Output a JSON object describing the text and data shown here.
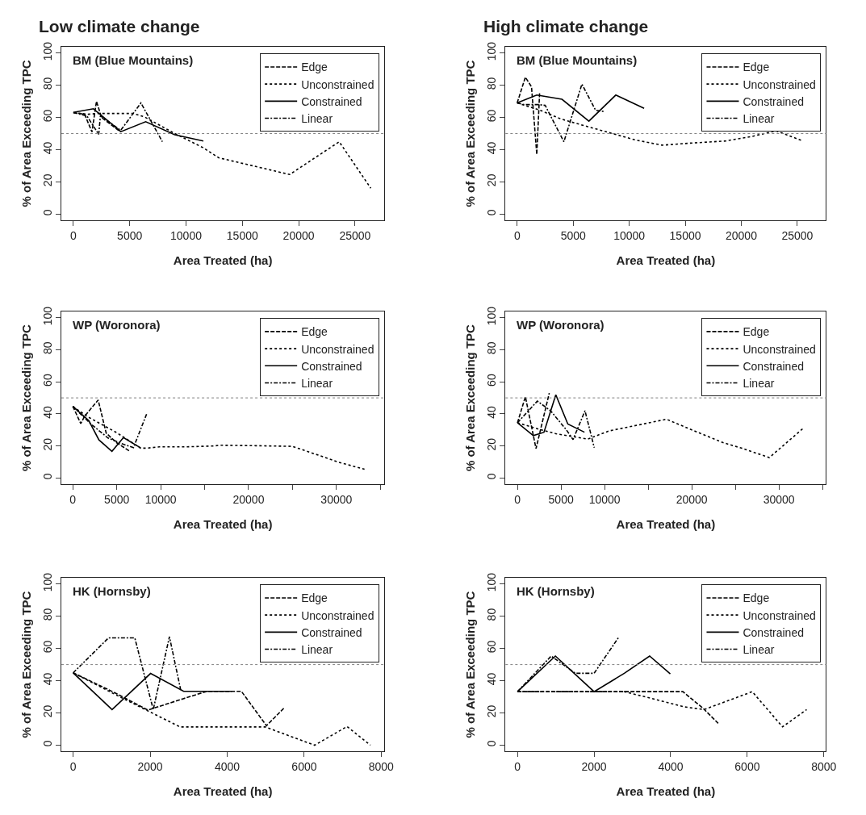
{
  "chart_data": [
    {
      "type": "line",
      "title": "Low climate change",
      "subtitle": "BM (Blue Mountains)",
      "xlabel": "Area Treated (ha)",
      "ylabel": "% of Area Exceeding TPC",
      "xlim": [
        -1060,
        27600
      ],
      "ylim": [
        -4,
        104
      ],
      "xticks": [
        0,
        5000,
        10000,
        15000,
        20000,
        25000
      ],
      "yticks": [
        0,
        20,
        40,
        60,
        80,
        100
      ],
      "grid": false,
      "legend": "top right",
      "marker": "none",
      "ref_lines": [
        {
          "axis": "y",
          "value": 50,
          "color": "#808080",
          "line_style": "dotted"
        }
      ],
      "series": [
        {
          "name": "Edge",
          "color": "#000000",
          "line_style": "dashed",
          "x": [
            0,
            1000,
            1650,
            2050,
            2500,
            4200
          ],
          "values": [
            63,
            62,
            51,
            70,
            60,
            51
          ]
        },
        {
          "name": "Unconstrained",
          "color": "#000000",
          "line_style": "dotted",
          "x": [
            0,
            1300,
            2250,
            5300,
            6300,
            8900,
            11500,
            12900,
            19200,
            23600,
            26400
          ],
          "values": [
            63,
            62,
            62.5,
            62.5,
            60.4,
            50.4,
            41.3,
            35,
            24.6,
            44.9,
            16.1
          ]
        },
        {
          "name": "Constrained",
          "color": "#000000",
          "line_style": "solid",
          "x": [
            0,
            1780,
            4220,
            6420,
            9000,
            11540
          ],
          "values": [
            63.2,
            65.4,
            51.2,
            57.4,
            49.3,
            45.4
          ]
        },
        {
          "name": "Linear",
          "color": "#000000",
          "line_style": "dashdot",
          "x": [
            0,
            1200,
            2250,
            2400,
            4200,
            6000,
            7900
          ],
          "values": [
            63,
            61,
            49.5,
            61,
            52,
            69,
            45
          ]
        }
      ]
    },
    {
      "type": "line",
      "title": "High climate change",
      "subtitle": "BM (Blue Mountains)",
      "xlabel": "Area Treated (ha)",
      "ylabel": "% of Area Exceeding TPC",
      "xlim": [
        -1040,
        27560
      ],
      "ylim": [
        -4,
        104
      ],
      "xticks": [
        0,
        5000,
        10000,
        15000,
        20000,
        25000
      ],
      "yticks": [
        0,
        20,
        40,
        60,
        80,
        100
      ],
      "grid": false,
      "legend": "top right",
      "marker": "none",
      "ref_lines": [
        {
          "axis": "y",
          "value": 50,
          "color": "#808080",
          "line_style": "dotted"
        }
      ],
      "series": [
        {
          "name": "Edge",
          "color": "#000000",
          "line_style": "dashed",
          "x": [
            0,
            730,
            1280,
            1750,
            2000
          ],
          "values": [
            69,
            85,
            79,
            37,
            75
          ]
        },
        {
          "name": "Unconstrained",
          "color": "#000000",
          "line_style": "dotted",
          "x": [
            0,
            2040,
            3930,
            6300,
            8670,
            10570,
            12940,
            15300,
            18600,
            21000,
            23100,
            25400
          ],
          "values": [
            69,
            64.5,
            59,
            54.3,
            49.7,
            46,
            42.8,
            44,
            45.4,
            48.3,
            51.7,
            45.7
          ]
        },
        {
          "name": "Constrained",
          "color": "#000000",
          "line_style": "solid",
          "x": [
            0,
            1750,
            4000,
            6400,
            8800,
            11330
          ],
          "values": [
            69.1,
            73.9,
            71.3,
            57.7,
            73.9,
            65.7
          ]
        },
        {
          "name": "Linear",
          "color": "#000000",
          "line_style": "dashdot",
          "x": [
            0,
            600,
            1900,
            2500,
            4170,
            5780,
            7000,
            7720
          ],
          "values": [
            69,
            68,
            68,
            67.5,
            44.9,
            80.7,
            64.5,
            63.7
          ]
        }
      ]
    },
    {
      "type": "line",
      "subtitle": "WP (Woronora)",
      "xlabel": "Area Treated (ha)",
      "ylabel": "% of Area Exceeding TPC",
      "xlim": [
        -1300,
        35450
      ],
      "ylim": [
        -4,
        104
      ],
      "xticks": [
        0,
        5000,
        10000,
        {
          "value": 15000,
          "label": null
        },
        20000,
        {
          "value": 25000,
          "label": null
        },
        30000,
        {
          "value": 35000,
          "label": null
        }
      ],
      "yticks": [
        0,
        20,
        40,
        60,
        80,
        100
      ],
      "grid": false,
      "legend": "top right",
      "marker": "none",
      "ref_lines": [
        {
          "axis": "y",
          "value": 50,
          "color": "#808080",
          "line_style": "dotted"
        }
      ],
      "series": [
        {
          "name": "Edge",
          "color": "#000000",
          "line_style": "dashed",
          "x": [
            0,
            900,
            1360,
            2880,
            3800,
            5000,
            6500
          ],
          "values": [
            44.7,
            34,
            38.7,
            48.7,
            28,
            22,
            16.7
          ]
        },
        {
          "name": "Unconstrained",
          "color": "#000000",
          "line_style": "dotted",
          "x": [
            0,
            1670,
            5000,
            7700,
            8480,
            9850,
            12900,
            15900,
            16800,
            20800,
            25000,
            28000,
            30200,
            33200
          ],
          "values": [
            44.7,
            38.3,
            28.3,
            18.7,
            18.7,
            19.5,
            19.5,
            20,
            20.5,
            20.2,
            19.8,
            14.2,
            10,
            5.5
          ]
        },
        {
          "name": "Constrained",
          "color": "#000000",
          "line_style": "solid",
          "x": [
            0,
            1820,
            2970,
            4450,
            5760,
            7730
          ],
          "values": [
            44.7,
            35.8,
            23.8,
            16.7,
            25.3,
            18.8
          ]
        },
        {
          "name": "Linear",
          "color": "#000000",
          "line_style": "dashdot",
          "x": [
            0,
            2000,
            4000,
            5800,
            6900,
            8400
          ],
          "values": [
            44.7,
            34,
            25,
            21,
            19,
            40
          ]
        }
      ]
    },
    {
      "type": "line",
      "subtitle": "WP (Woronora)",
      "xlabel": "Area Treated (ha)",
      "ylabel": "% of Area Exceeding TPC",
      "xlim": [
        -1370,
        35400
      ],
      "ylim": [
        -4,
        104
      ],
      "xticks": [
        0,
        5000,
        10000,
        {
          "value": 15000,
          "label": null
        },
        20000,
        {
          "value": 25000,
          "label": null
        },
        30000,
        {
          "value": 35000,
          "label": null
        }
      ],
      "yticks": [
        0,
        20,
        40,
        60,
        80,
        100
      ],
      "grid": false,
      "legend": "top right",
      "marker": "none",
      "ref_lines": [
        {
          "axis": "y",
          "value": 50,
          "color": "#808080",
          "line_style": "dotted"
        }
      ],
      "series": [
        {
          "name": "Edge",
          "color": "#000000",
          "line_style": "dashed",
          "x": [
            0,
            910,
            2130,
            3650
          ],
          "values": [
            34.5,
            50.7,
            18.4,
            53
          ]
        },
        {
          "name": "Unconstrained",
          "color": "#000000",
          "line_style": "dotted",
          "x": [
            0,
            2580,
            4400,
            8050,
            10500,
            14400,
            17100,
            19900,
            23600,
            25700,
            28900,
            32800
          ],
          "values": [
            34.5,
            30.3,
            27.7,
            24.3,
            29.4,
            33.7,
            36.7,
            30.3,
            22.1,
            18.7,
            12.8,
            31.1
          ]
        },
        {
          "name": "Constrained",
          "color": "#000000",
          "line_style": "solid",
          "x": [
            0,
            1820,
            3040,
            4400,
            5780,
            7690
          ],
          "values": [
            34.5,
            26.5,
            28.6,
            51.9,
            33.7,
            28.6
          ]
        },
        {
          "name": "Linear",
          "color": "#000000",
          "line_style": "dashdot",
          "x": [
            0,
            2280,
            3800,
            5620,
            6380,
            7750,
            8810
          ],
          "values": [
            34.5,
            48,
            42,
            30,
            24,
            42,
            19
          ]
        }
      ]
    },
    {
      "type": "line",
      "subtitle": "HK (Hornsby)",
      "xlabel": "Area Treated (ha)",
      "ylabel": "% of Area Exceeding TPC",
      "xlim": [
        -305,
        8080
      ],
      "ylim": [
        -4,
        104
      ],
      "xticks": [
        0,
        2000,
        4000,
        6000,
        8000
      ],
      "yticks": [
        0,
        20,
        40,
        60,
        80,
        100
      ],
      "grid": false,
      "legend": "top right",
      "marker": "none",
      "ref_lines": [
        {
          "axis": "y",
          "value": 50,
          "color": "#808080",
          "line_style": "dotted"
        }
      ],
      "series": [
        {
          "name": "Edge",
          "color": "#000000",
          "line_style": "dashed",
          "x": [
            0,
            1050,
            1940,
            2840,
            3470,
            4370,
            5020,
            5470
          ],
          "values": [
            44.9,
            32.9,
            21.8,
            28.7,
            33.4,
            33.4,
            12.1,
            22.9
          ]
        },
        {
          "name": "Unconstrained",
          "color": "#000000",
          "line_style": "dotted",
          "x": [
            0,
            1180,
            1980,
            2780,
            4990,
            6270,
            7110,
            7720
          ],
          "values": [
            44.9,
            30.4,
            20.8,
            11.3,
            11.3,
            0,
            11.6,
            0
          ]
        },
        {
          "name": "Constrained",
          "color": "#000000",
          "line_style": "solid",
          "x": [
            0,
            1010,
            2010,
            2870,
            4120
          ],
          "values": [
            44.9,
            22.1,
            44.5,
            33.4,
            33.4
          ]
        },
        {
          "name": "Linear",
          "color": "#000000",
          "line_style": "dashdot",
          "x": [
            0,
            920,
            1600,
            2080,
            2500,
            2800
          ],
          "values": [
            44.9,
            66.6,
            66.6,
            22.1,
            67.3,
            33.4
          ]
        }
      ]
    },
    {
      "type": "line",
      "subtitle": "HK (Hornsby)",
      "xlabel": "Area Treated (ha)",
      "ylabel": "% of Area Exceeding TPC",
      "xlim": [
        -312,
        8055
      ],
      "ylim": [
        -4,
        104
      ],
      "xticks": [
        0,
        2000,
        4000,
        6000,
        8000
      ],
      "yticks": [
        0,
        20,
        40,
        60,
        80,
        100
      ],
      "grid": false,
      "legend": "top right",
      "marker": "none",
      "ref_lines": [
        {
          "axis": "y",
          "value": 50,
          "color": "#808080",
          "line_style": "dotted"
        }
      ],
      "series": [
        {
          "name": "Edge",
          "color": "#000000",
          "line_style": "dashed",
          "x": [
            0,
            2000,
            2800,
            4320,
            4840,
            5240
          ],
          "values": [
            33.2,
            33.2,
            33.2,
            33.2,
            23,
            13.6
          ]
        },
        {
          "name": "Unconstrained",
          "color": "#000000",
          "line_style": "dotted",
          "x": [
            0,
            2790,
            3520,
            4350,
            4870,
            6130,
            6920,
            7550
          ],
          "values": [
            33.2,
            33.2,
            28.9,
            23.8,
            22.1,
            33.2,
            11.4,
            22.1
          ]
        },
        {
          "name": "Constrained",
          "color": "#000000",
          "line_style": "solid",
          "x": [
            0,
            990,
            2000,
            2790,
            3450,
            3990
          ],
          "values": [
            33.2,
            55.3,
            33.2,
            44.6,
            55.3,
            44.2
          ]
        },
        {
          "name": "Linear",
          "color": "#000000",
          "line_style": "dashdot",
          "x": [
            0,
            880,
            1510,
            2000,
            2650
          ],
          "values": [
            33.2,
            55.3,
            44.6,
            44.6,
            67.2
          ]
        }
      ]
    }
  ]
}
